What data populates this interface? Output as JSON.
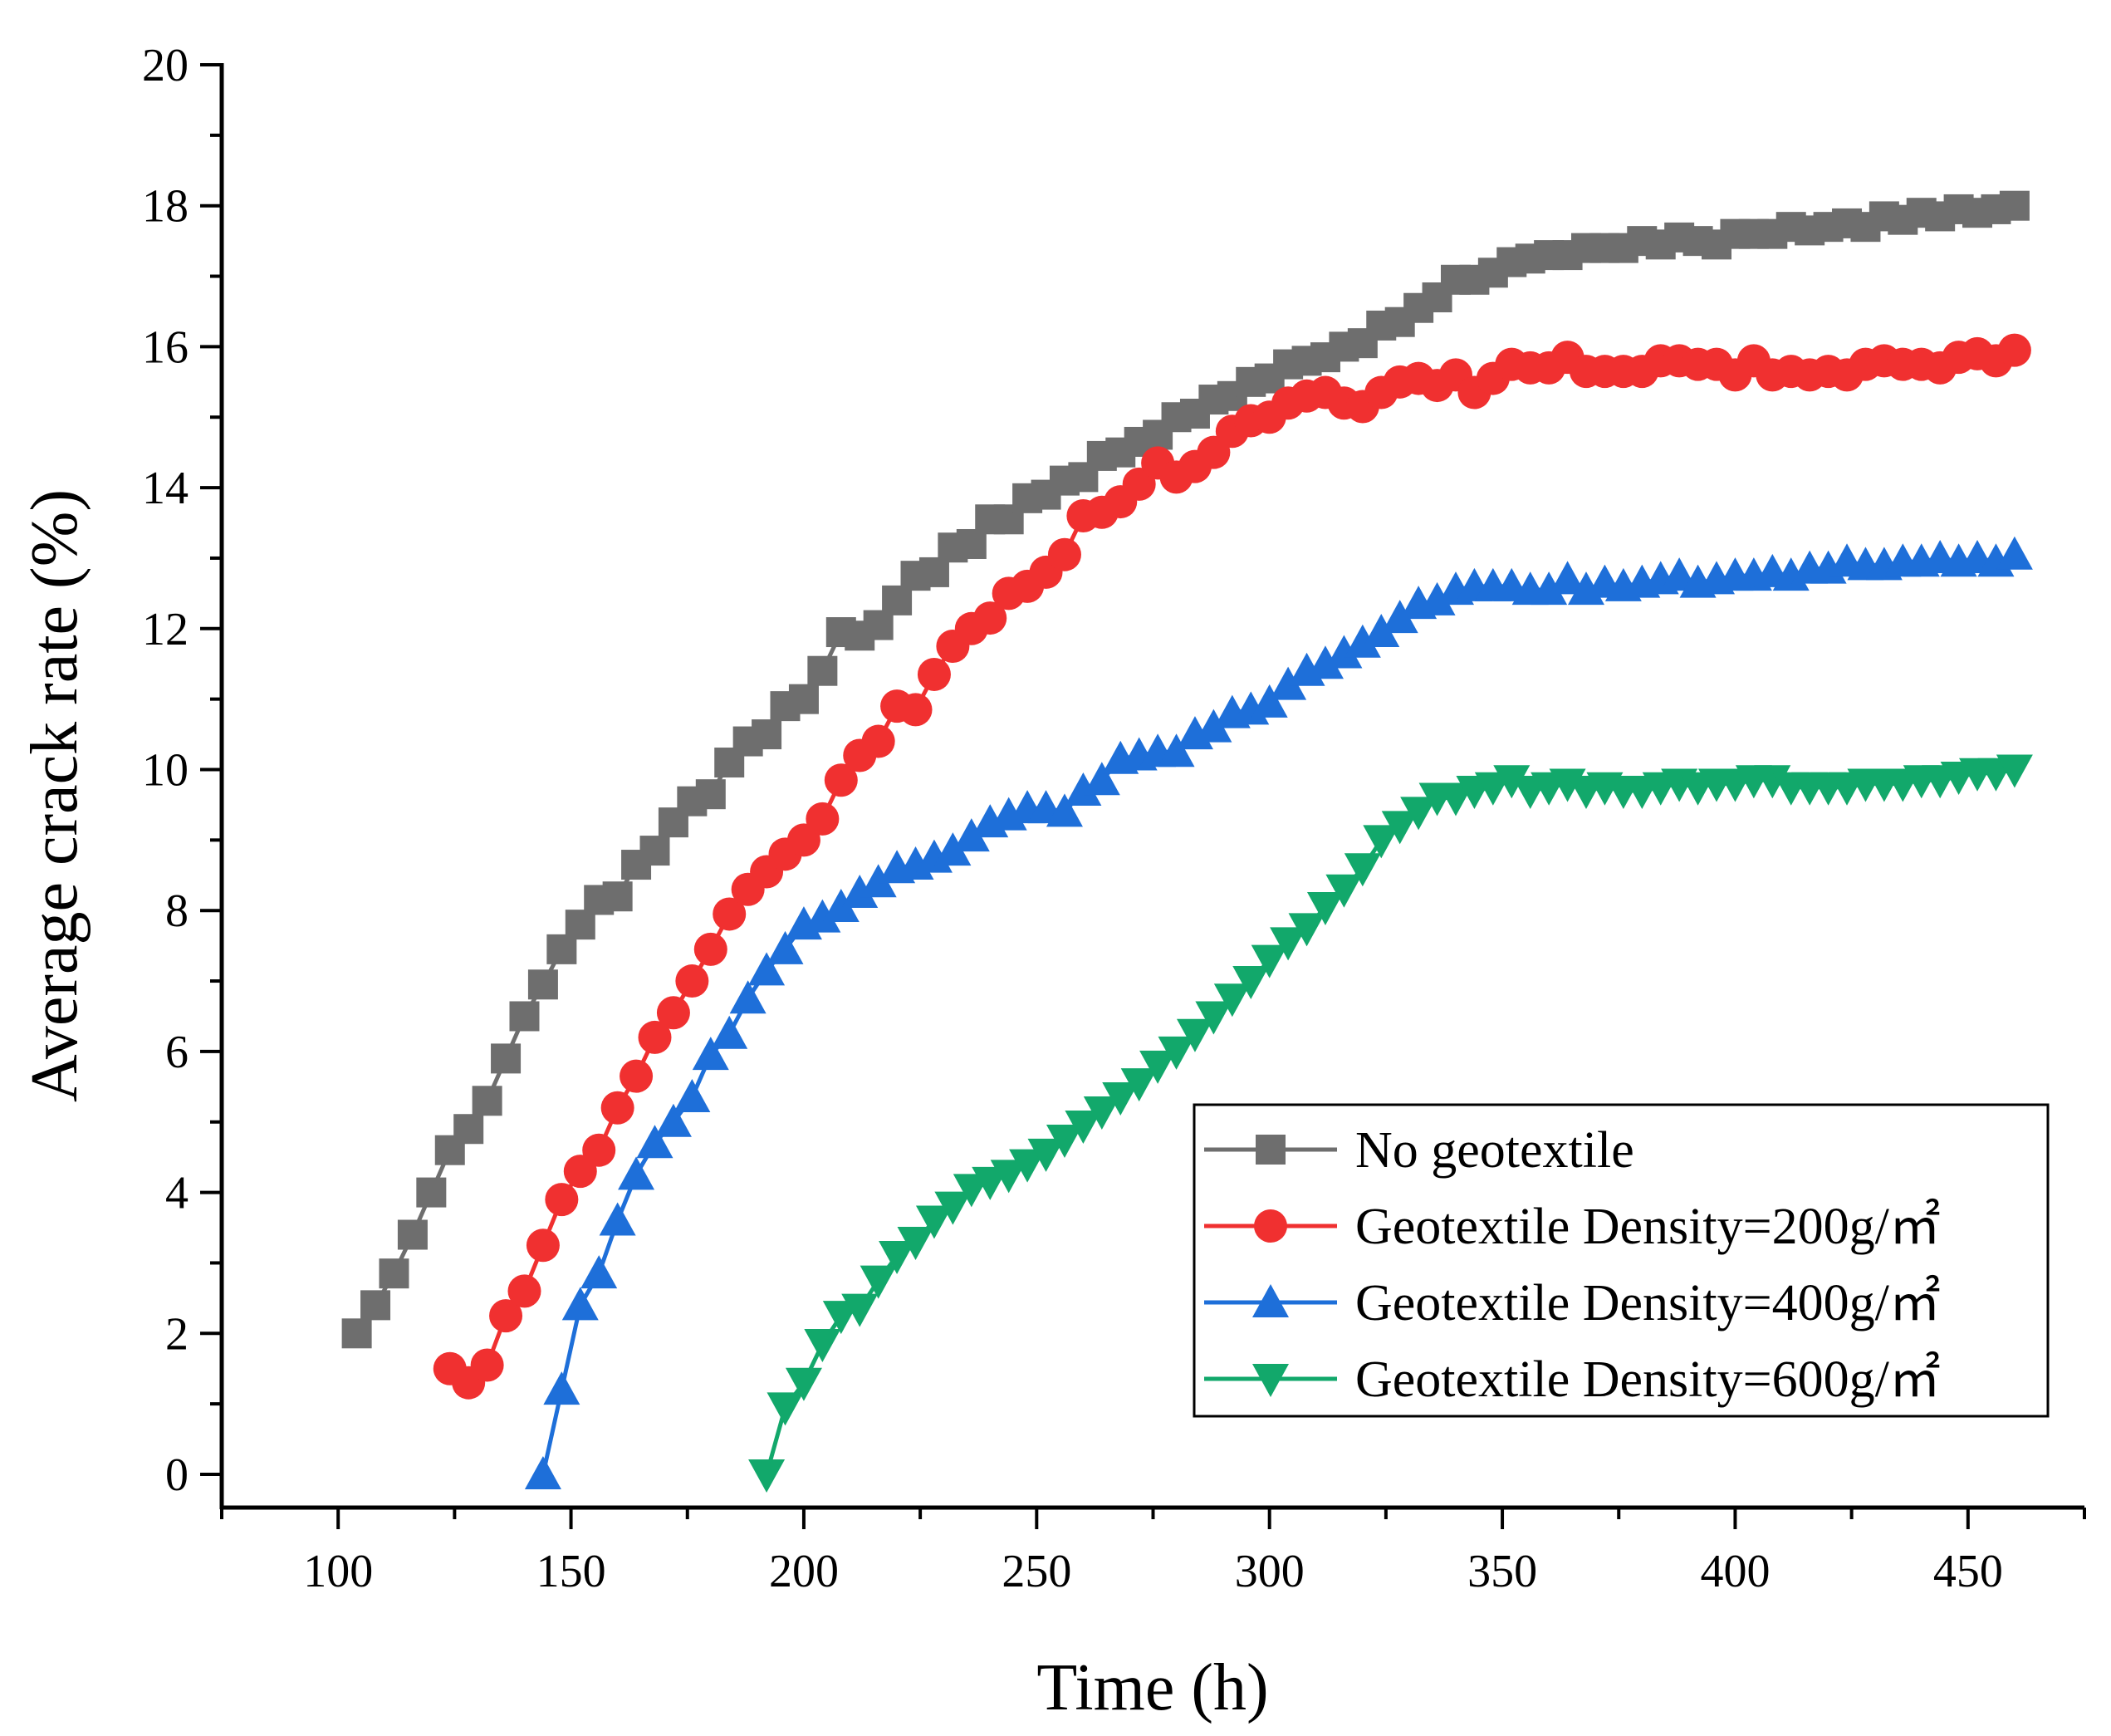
{
  "chart_data": {
    "type": "line",
    "title": "",
    "xlabel": "Time (h)",
    "ylabel": "Average crack rate (%)",
    "xlim": [
      75,
      475
    ],
    "ylim": [
      0,
      20
    ],
    "xticks": [
      100,
      150,
      200,
      250,
      300,
      350,
      400,
      450
    ],
    "yticks": [
      0,
      2,
      4,
      6,
      8,
      10,
      12,
      14,
      16,
      18,
      20
    ],
    "grid": false,
    "legend_position": "bottom-right",
    "series": [
      {
        "name": "No geotextile",
        "color": "#6e6e6e",
        "marker": "square",
        "x": [
          104,
          108,
          112,
          116,
          120,
          124,
          128,
          132,
          136,
          140,
          144,
          148,
          152,
          156,
          160,
          164,
          168,
          172,
          176,
          180,
          184,
          188,
          192,
          196,
          200,
          204,
          208,
          212,
          216,
          220,
          224,
          228,
          232,
          236,
          240,
          244,
          248,
          252,
          256,
          260,
          264,
          268,
          272,
          276,
          280,
          284,
          288,
          292,
          296,
          300,
          304,
          308,
          312,
          316,
          320,
          324,
          328,
          332,
          336,
          340,
          344,
          348,
          352,
          356,
          360,
          364,
          368,
          372,
          376,
          380,
          384,
          388,
          392,
          396,
          400,
          404,
          408,
          412,
          416,
          420,
          424,
          428,
          432,
          436,
          440,
          444,
          448,
          452,
          456,
          460
        ],
        "y": [
          2.0,
          2.4,
          2.85,
          3.4,
          4.0,
          4.6,
          4.9,
          5.3,
          5.9,
          6.5,
          6.95,
          7.45,
          7.8,
          8.15,
          8.2,
          8.65,
          8.85,
          9.25,
          9.55,
          9.65,
          10.1,
          10.4,
          10.5,
          10.9,
          11.0,
          11.4,
          11.95,
          11.9,
          12.05,
          12.4,
          12.75,
          12.8,
          13.15,
          13.2,
          13.55,
          13.55,
          13.85,
          13.9,
          14.1,
          14.15,
          14.45,
          14.5,
          14.65,
          14.75,
          15.0,
          15.05,
          15.25,
          15.3,
          15.5,
          15.55,
          15.75,
          15.8,
          15.85,
          16.0,
          16.05,
          16.3,
          16.35,
          16.55,
          16.7,
          16.95,
          16.95,
          17.05,
          17.2,
          17.25,
          17.3,
          17.3,
          17.4,
          17.4,
          17.4,
          17.5,
          17.45,
          17.55,
          17.5,
          17.45,
          17.6,
          17.6,
          17.6,
          17.7,
          17.65,
          17.7,
          17.75,
          17.7,
          17.85,
          17.8,
          17.9,
          17.85,
          17.95,
          17.9,
          17.95,
          18.0
        ]
      },
      {
        "name": "Geotextile Density=200g/㎡",
        "color": "#f03030",
        "marker": "circle",
        "x": [
          124,
          128,
          132,
          136,
          140,
          144,
          148,
          152,
          156,
          160,
          164,
          168,
          172,
          176,
          180,
          184,
          188,
          192,
          196,
          200,
          204,
          208,
          212,
          216,
          220,
          224,
          228,
          232,
          236,
          240,
          244,
          248,
          252,
          256,
          260,
          264,
          268,
          272,
          276,
          280,
          284,
          288,
          292,
          296,
          300,
          304,
          308,
          312,
          316,
          320,
          324,
          328,
          332,
          336,
          340,
          344,
          348,
          352,
          356,
          360,
          364,
          368,
          372,
          376,
          380,
          384,
          388,
          392,
          396,
          400,
          404,
          408,
          412,
          416,
          420,
          424,
          428,
          432,
          436,
          440,
          444,
          448,
          452,
          456,
          460
        ],
        "y": [
          1.5,
          1.3,
          1.55,
          2.25,
          2.6,
          3.25,
          3.9,
          4.3,
          4.6,
          5.2,
          5.65,
          6.2,
          6.55,
          7.0,
          7.45,
          7.95,
          8.3,
          8.55,
          8.8,
          9.0,
          9.3,
          9.85,
          10.2,
          10.4,
          10.9,
          10.85,
          11.35,
          11.75,
          12.0,
          12.15,
          12.5,
          12.6,
          12.8,
          13.05,
          13.6,
          13.65,
          13.8,
          14.05,
          14.35,
          14.15,
          14.3,
          14.5,
          14.8,
          14.95,
          15.0,
          15.2,
          15.3,
          15.35,
          15.2,
          15.15,
          15.35,
          15.5,
          15.55,
          15.45,
          15.6,
          15.35,
          15.55,
          15.75,
          15.7,
          15.7,
          15.85,
          15.65,
          15.65,
          15.65,
          15.65,
          15.8,
          15.8,
          15.75,
          15.75,
          15.6,
          15.8,
          15.6,
          15.65,
          15.6,
          15.65,
          15.6,
          15.75,
          15.8,
          15.75,
          15.75,
          15.7,
          15.85,
          15.9,
          15.8,
          15.95
        ]
      },
      {
        "name": "Geotextile Density=400g/㎡",
        "color": "#1e6fd9",
        "marker": "triangle-up",
        "x": [
          144,
          148,
          152,
          156,
          160,
          164,
          168,
          172,
          176,
          180,
          184,
          188,
          192,
          196,
          200,
          204,
          208,
          212,
          216,
          220,
          224,
          228,
          232,
          236,
          240,
          244,
          248,
          252,
          256,
          260,
          264,
          268,
          272,
          276,
          280,
          284,
          288,
          292,
          296,
          300,
          304,
          308,
          312,
          316,
          320,
          324,
          328,
          332,
          336,
          340,
          344,
          348,
          352,
          356,
          360,
          364,
          368,
          372,
          376,
          380,
          384,
          388,
          392,
          396,
          400,
          404,
          408,
          412,
          416,
          420,
          424,
          428,
          432,
          436,
          440,
          444,
          448,
          452,
          456,
          460
        ],
        "y": [
          0.0,
          1.2,
          2.4,
          2.85,
          3.6,
          4.25,
          4.7,
          5.0,
          5.35,
          5.95,
          6.25,
          6.75,
          7.15,
          7.45,
          7.8,
          7.9,
          8.05,
          8.25,
          8.4,
          8.6,
          8.65,
          8.75,
          8.85,
          9.05,
          9.25,
          9.35,
          9.45,
          9.45,
          9.4,
          9.7,
          9.85,
          10.15,
          10.2,
          10.25,
          10.25,
          10.5,
          10.6,
          10.8,
          10.85,
          10.95,
          11.2,
          11.4,
          11.5,
          11.65,
          11.8,
          11.95,
          12.15,
          12.35,
          12.4,
          12.55,
          12.6,
          12.6,
          12.6,
          12.55,
          12.55,
          12.7,
          12.55,
          12.65,
          12.6,
          12.65,
          12.7,
          12.75,
          12.65,
          12.7,
          12.75,
          12.75,
          12.8,
          12.75,
          12.85,
          12.85,
          12.95,
          12.9,
          12.9,
          12.95,
          12.95,
          13.0,
          12.95,
          13.0,
          12.95,
          13.05
        ]
      },
      {
        "name": "Geotextile Density=600g/㎡",
        "color": "#12a86b",
        "marker": "triangle-down",
        "x": [
          192,
          196,
          200,
          204,
          208,
          212,
          216,
          220,
          224,
          228,
          232,
          236,
          240,
          244,
          248,
          252,
          256,
          260,
          264,
          268,
          272,
          276,
          280,
          284,
          288,
          292,
          296,
          300,
          304,
          308,
          312,
          316,
          320,
          324,
          328,
          332,
          336,
          340,
          344,
          348,
          352,
          356,
          360,
          364,
          368,
          372,
          376,
          380,
          384,
          388,
          392,
          396,
          400,
          404,
          408,
          412,
          416,
          420,
          424,
          428,
          432,
          436,
          440,
          444,
          448,
          452,
          456,
          460
        ],
        "y": [
          0.0,
          0.95,
          1.3,
          1.85,
          2.25,
          2.35,
          2.75,
          3.1,
          3.3,
          3.6,
          3.8,
          4.05,
          4.15,
          4.25,
          4.4,
          4.55,
          4.75,
          4.95,
          5.15,
          5.35,
          5.55,
          5.8,
          6.0,
          6.25,
          6.5,
          6.75,
          7.0,
          7.3,
          7.55,
          7.75,
          8.05,
          8.3,
          8.6,
          9.0,
          9.2,
          9.4,
          9.6,
          9.6,
          9.7,
          9.75,
          9.85,
          9.7,
          9.75,
          9.8,
          9.7,
          9.75,
          9.7,
          9.7,
          9.75,
          9.8,
          9.75,
          9.8,
          9.8,
          9.85,
          9.85,
          9.75,
          9.75,
          9.75,
          9.75,
          9.8,
          9.8,
          9.8,
          9.85,
          9.85,
          9.9,
          9.95,
          9.95,
          10.0
        ]
      }
    ]
  }
}
